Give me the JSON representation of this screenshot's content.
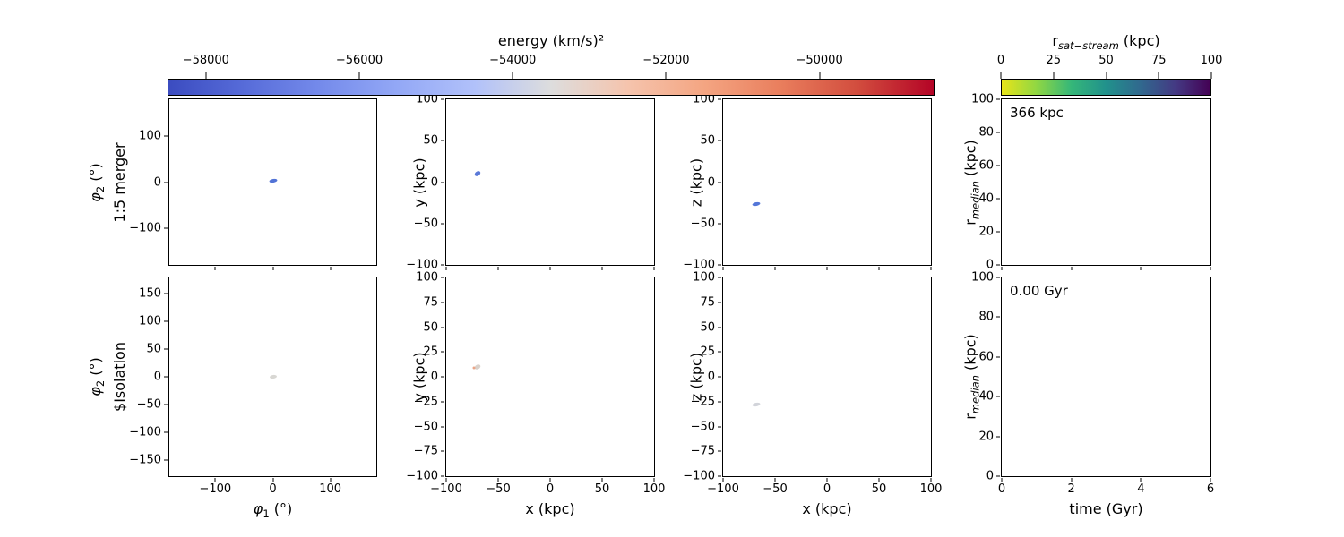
{
  "figure": {
    "background": "#ffffff",
    "frame_color": "#000000"
  },
  "colorbars": [
    {
      "id": "energy",
      "title": "energy (km/s)²",
      "orientation": "horizontal",
      "vmin": -58500,
      "vmax": -48500,
      "ticks": [
        -58000,
        -56000,
        -54000,
        -52000,
        -50000
      ],
      "colormap": "coolwarm",
      "gradient": [
        "#3b4cc0",
        "#576cd9",
        "#758beb",
        "#93a8f6",
        "#b1c1fa",
        "#dddddd",
        "#f5c4ad",
        "#f4a582",
        "#e97e5d",
        "#d24d3e",
        "#b40426"
      ]
    },
    {
      "id": "rsat",
      "title_prefix": "r",
      "title_sub": "sat−stream",
      "title_suffix": " (kpc)",
      "orientation": "horizontal",
      "vmin": 0,
      "vmax": 100,
      "ticks": [
        0,
        25,
        50,
        75,
        100
      ],
      "colormap": "viridis_r",
      "gradient": [
        "#e8e419",
        "#90d743",
        "#35b779",
        "#21918c",
        "#31688e",
        "#443983",
        "#440154"
      ]
    }
  ],
  "chart_data": [
    {
      "id": "merger-phi",
      "type": "scatter",
      "row_label": "1:5 merger",
      "ylabel": {
        "prefix": "φ",
        "sub": "2",
        "suffix": " (°)"
      },
      "xlabel": null,
      "xlim": [
        -180,
        180
      ],
      "ylim": [
        -180,
        180
      ],
      "xticks": [
        -100,
        0,
        100
      ],
      "yticks": [
        100,
        0,
        -100
      ],
      "show_xtick_labels": false,
      "annotation": null,
      "points": [
        {
          "x": 0,
          "y": 2,
          "color": "#5273d6",
          "w": 9,
          "h": 4,
          "angle": -10
        }
      ]
    },
    {
      "id": "merger-xy",
      "type": "scatter",
      "row_label": null,
      "ylabel": {
        "prefix": "y",
        "sub": "",
        "suffix": " (kpc)"
      },
      "xlabel": null,
      "xlim": [
        -100,
        100
      ],
      "ylim": [
        -100,
        100
      ],
      "xticks": [
        -100,
        -50,
        0,
        50,
        100
      ],
      "yticks": [
        100,
        50,
        0,
        -50,
        -100
      ],
      "show_xtick_labels": false,
      "annotation": null,
      "points": [
        {
          "x": -70,
          "y": 10,
          "color": "#5a79d8",
          "w": 7,
          "h": 5,
          "angle": -35
        }
      ]
    },
    {
      "id": "merger-xz",
      "type": "scatter",
      "row_label": null,
      "ylabel": {
        "prefix": "z",
        "sub": "",
        "suffix": " (kpc)"
      },
      "xlabel": null,
      "xlim": [
        -100,
        100
      ],
      "ylim": [
        -100,
        100
      ],
      "xticks": [
        -100,
        -50,
        0,
        50,
        100
      ],
      "yticks": [
        100,
        50,
        0,
        -50,
        -100
      ],
      "show_xtick_labels": false,
      "annotation": null,
      "points": [
        {
          "x": -68,
          "y": -27,
          "color": "#5476d8",
          "w": 9,
          "h": 4,
          "angle": -12
        }
      ]
    },
    {
      "id": "merger-rmedian",
      "type": "line",
      "row_label": null,
      "ylabel": {
        "prefix": "r",
        "sub": "median",
        "suffix": " (kpc)"
      },
      "xlabel": null,
      "xlim": [
        0,
        6
      ],
      "ylim": [
        0,
        100
      ],
      "xticks": [
        0,
        2,
        4,
        6
      ],
      "yticks": [
        100,
        80,
        60,
        40,
        20,
        0
      ],
      "show_xtick_labels": false,
      "annotation": "366 kpc",
      "points": []
    },
    {
      "id": "isolation-phi",
      "type": "scatter",
      "row_label": "$Isolation",
      "ylabel": {
        "prefix": "φ",
        "sub": "2",
        "suffix": " (°)"
      },
      "xlabel": {
        "prefix": "φ",
        "sub": "1",
        "suffix": " (°)"
      },
      "xlim": [
        -180,
        180
      ],
      "ylim": [
        -180,
        180
      ],
      "xticks": [
        -100,
        0,
        100
      ],
      "yticks": [
        150,
        100,
        50,
        0,
        -50,
        -100,
        -150
      ],
      "show_xtick_labels": true,
      "annotation": null,
      "points": [
        {
          "x": 0,
          "y": 0,
          "color": "#d8d7d3",
          "w": 8,
          "h": 4,
          "angle": -8
        }
      ]
    },
    {
      "id": "isolation-xy",
      "type": "scatter",
      "row_label": null,
      "ylabel": {
        "prefix": "y",
        "sub": "",
        "suffix": " (kpc)"
      },
      "xlabel": {
        "prefix": "x",
        "sub": "",
        "suffix": " (kpc)"
      },
      "xlim": [
        -100,
        100
      ],
      "ylim": [
        -100,
        100
      ],
      "xticks": [
        -100,
        -50,
        0,
        50,
        100
      ],
      "yticks": [
        100,
        75,
        50,
        25,
        0,
        -25,
        -50,
        -75,
        -100
      ],
      "show_xtick_labels": true,
      "annotation": null,
      "points": [
        {
          "x": -70,
          "y": 10,
          "color": "#d9d2cc",
          "w": 7,
          "h": 5,
          "angle": -30
        },
        {
          "x": -73,
          "y": 9,
          "color": "#eaa688",
          "w": 3,
          "h": 3,
          "angle": 0
        }
      ]
    },
    {
      "id": "isolation-xz",
      "type": "scatter",
      "row_label": null,
      "ylabel": {
        "prefix": "z",
        "sub": "",
        "suffix": " (kpc)"
      },
      "xlabel": {
        "prefix": "x",
        "sub": "",
        "suffix": " (kpc)"
      },
      "xlim": [
        -100,
        100
      ],
      "ylim": [
        -100,
        100
      ],
      "xticks": [
        -100,
        -50,
        0,
        50,
        100
      ],
      "yticks": [
        100,
        75,
        50,
        25,
        0,
        -25,
        -50,
        -75,
        -100
      ],
      "show_xtick_labels": true,
      "annotation": null,
      "points": [
        {
          "x": -68,
          "y": -28,
          "color": "#d2d4da",
          "w": 9,
          "h": 4,
          "angle": -12
        }
      ]
    },
    {
      "id": "isolation-rmedian",
      "type": "line",
      "row_label": null,
      "ylabel": {
        "prefix": "r",
        "sub": "median",
        "suffix": " (kpc)"
      },
      "xlabel": {
        "prefix": "time",
        "sub": "",
        "suffix": " (Gyr)"
      },
      "xlim": [
        0,
        6
      ],
      "ylim": [
        0,
        100
      ],
      "xticks": [
        0,
        2,
        4,
        6
      ],
      "yticks": [
        100,
        80,
        60,
        40,
        20,
        0
      ],
      "show_xtick_labels": true,
      "annotation": "0.00 Gyr",
      "points": []
    }
  ]
}
